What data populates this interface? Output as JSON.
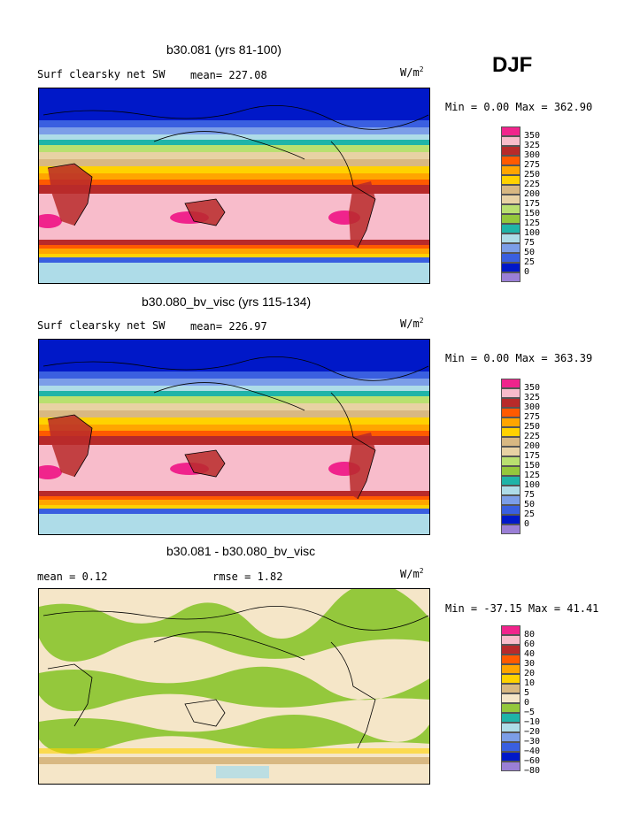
{
  "season": "DJF",
  "units_base": "W/m",
  "units_exp": "2",
  "panels": [
    {
      "title": "b30.081 (yrs 81-100)",
      "left_label": "Surf clearsky net SW",
      "stat_label": "mean= 227.08",
      "minmax": "Min =   0.00 Max = 362.90"
    },
    {
      "title": "b30.080_bv_visc (yrs 115-134)",
      "left_label": "Surf clearsky net SW",
      "stat_label": "mean= 226.97",
      "minmax": "Min =   0.00 Max = 363.39"
    },
    {
      "title": "b30.081 - b30.080_bv_visc",
      "left_label": "mean =    0.12",
      "stat_label": "rmse =    1.82",
      "minmax": "Min = -37.15 Max =  41.41"
    }
  ],
  "chart_data": [
    {
      "type": "heatmap",
      "title": "b30.081 (yrs 81-100)",
      "variable": "Surf clearsky net SW",
      "units": "W/m2",
      "mean": 227.08,
      "min": 0.0,
      "max": 362.9,
      "contour_levels": [
        0,
        25,
        50,
        75,
        100,
        125,
        150,
        175,
        200,
        225,
        250,
        275,
        300,
        325,
        350
      ],
      "level_colors": [
        "#9a7fd6",
        "#0018c8",
        "#3a5fe0",
        "#7c9ee8",
        "#aedce8",
        "#1fb4a8",
        "#94c83c",
        "#b9e070",
        "#e8d2a4",
        "#d8b882",
        "#ffd200",
        "#ffa500",
        "#ff5a00",
        "#b82a2a",
        "#f8bccb",
        "#f0248c"
      ]
    },
    {
      "type": "heatmap",
      "title": "b30.080_bv_visc (yrs 115-134)",
      "variable": "Surf clearsky net SW",
      "units": "W/m2",
      "mean": 226.97,
      "min": 0.0,
      "max": 363.39,
      "contour_levels": [
        0,
        25,
        50,
        75,
        100,
        125,
        150,
        175,
        200,
        225,
        250,
        275,
        300,
        325,
        350
      ],
      "level_colors": [
        "#9a7fd6",
        "#0018c8",
        "#3a5fe0",
        "#7c9ee8",
        "#aedce8",
        "#1fb4a8",
        "#94c83c",
        "#b9e070",
        "#e8d2a4",
        "#d8b882",
        "#ffd200",
        "#ffa500",
        "#ff5a00",
        "#b82a2a",
        "#f8bccb",
        "#f0248c"
      ]
    },
    {
      "type": "heatmap",
      "title": "b30.081 - b30.080_bv_visc",
      "units": "W/m2",
      "mean": 0.12,
      "rmse": 1.82,
      "min": -37.15,
      "max": 41.41,
      "contour_levels": [
        -80,
        -60,
        -40,
        -30,
        -20,
        -10,
        -5,
        0,
        5,
        10,
        20,
        30,
        40,
        60,
        80
      ],
      "level_colors": [
        "#9a7fd6",
        "#0018c8",
        "#3a5fe0",
        "#7c9ee8",
        "#aedce8",
        "#1fb4a8",
        "#94c83c",
        "#f5e6c8",
        "#d8b882",
        "#ffd200",
        "#ffa500",
        "#ff5a00",
        "#b82a2a",
        "#f8bccb",
        "#f0248c"
      ]
    }
  ]
}
